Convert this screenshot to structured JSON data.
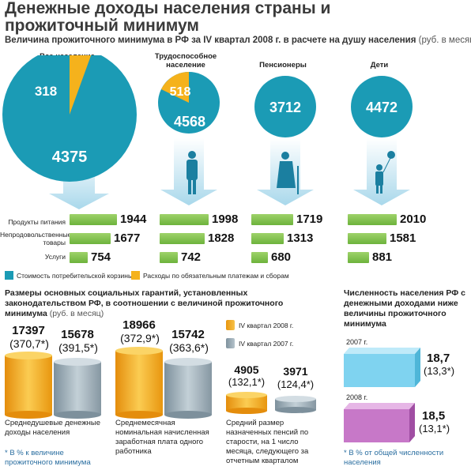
{
  "title": "Денежные доходы населения страны и прожиточный минимум",
  "subtitle": "Величина прожиточного минимума в РФ за IV квартал 2008 г. в расчете на душу населения",
  "subtitle_unit": "(руб. в месяц)",
  "groups": [
    {
      "label": "Все население",
      "basket": 4375,
      "payments": 318
    },
    {
      "label": "Трудоспособное население",
      "basket": 4568,
      "payments": 518
    },
    {
      "label": "Пенсионеры",
      "basket": 3712
    },
    {
      "label": "Дети",
      "basket": 4472
    }
  ],
  "row_labels": [
    "Продукты питания",
    "Непродовольственные товары",
    "Услуги"
  ],
  "bars": [
    [
      1944,
      1677,
      754
    ],
    [
      1998,
      1828,
      742
    ],
    [
      1719,
      1313,
      680
    ],
    [
      2010,
      1581,
      881
    ]
  ],
  "legend": {
    "basket": "Стоимость потребительской корзины",
    "payments": "Расходы по обязательным платежам и сборам"
  },
  "colors": {
    "teal": "#1b9bb5",
    "orange": "#f5b21c",
    "green": "#77bc42",
    "grey": "#9aabb6",
    "cyan": "#7fd3f0",
    "purple": "#c778c8"
  },
  "guarantees": {
    "title": "Размеры основных социальных гарантий, установленных законодательством РФ, в соотношении с величиной прожиточного минимума",
    "unit": "(руб. в месяц)",
    "legend_2008": "IV квартал 2008 г.",
    "legend_2007": "IV квартал 2007 г.",
    "items": [
      {
        "v2008": "17397",
        "p2008": "(370,7*)",
        "v2007": "15678",
        "p2007": "(391,5*)",
        "caption": "Среднедушевые денежные доходы населения"
      },
      {
        "v2008": "18966",
        "p2008": "(372,9*)",
        "v2007": "15742",
        "p2007": "(363,6*)",
        "caption": "Среднемесячная номинальная начисленная заработная плата одного работника"
      },
      {
        "v2008": "4905",
        "p2008": "(132,1*)",
        "v2007": "3971",
        "p2007": "(124,4*)",
        "caption": "Средний размер назначенных пенсий по старости, на 1 число месяца, следующего за отчетным кварталом"
      }
    ],
    "footnote": "* В % к величине прожиточного минимума"
  },
  "poor": {
    "title": "Численность населения РФ с денежными доходами ниже величины прожиточного минимума",
    "items": [
      {
        "year": "2007 г.",
        "value": "18,7",
        "pct": "(13,3*)"
      },
      {
        "year": "2008 г.",
        "value": "18,5",
        "pct": "(13,1*)"
      }
    ],
    "footnote": "* В % от общей численности населения"
  }
}
